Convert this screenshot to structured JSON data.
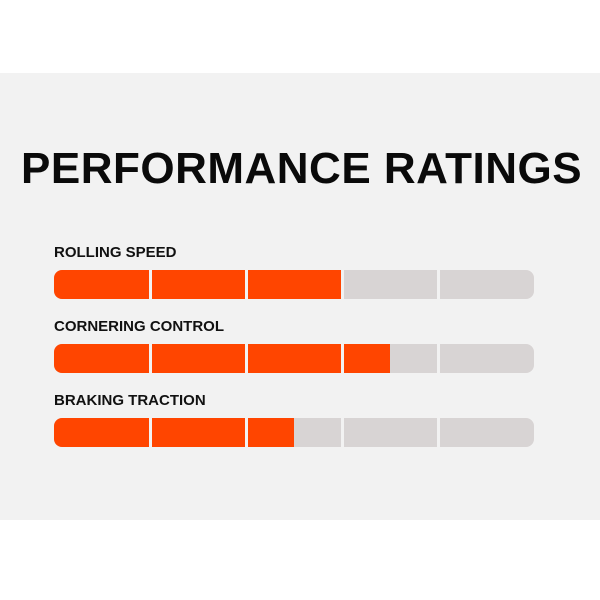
{
  "title": "PERFORMANCE RATINGS",
  "colors": {
    "fill": "#ff4500",
    "track": "#d8d4d4",
    "background": "#f2f2f2"
  },
  "scale_max": 5,
  "ratings": [
    {
      "label": "ROLLING SPEED",
      "value": 3
    },
    {
      "label": "CORNERING CONTROL",
      "value": 3.5
    },
    {
      "label": "BRAKING TRACTION",
      "value": 2.5
    }
  ]
}
